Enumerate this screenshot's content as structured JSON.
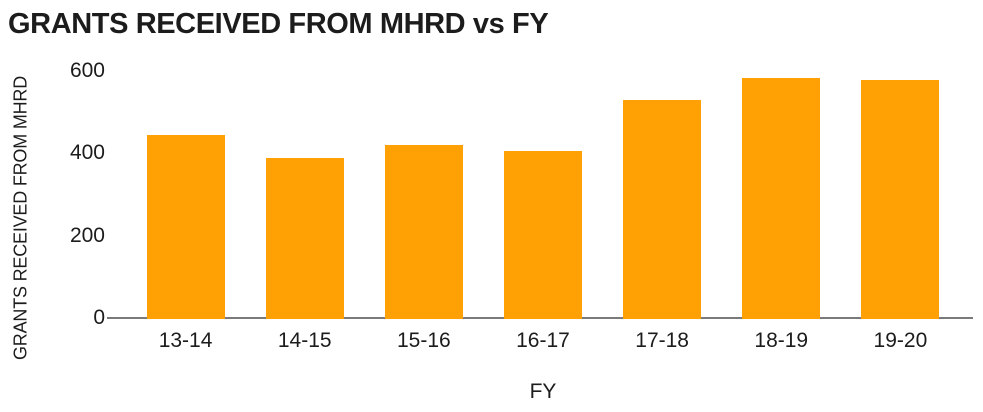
{
  "chart_data": {
    "type": "bar",
    "title": "GRANTS RECEIVED FROM MHRD vs FY",
    "xlabel": "FY",
    "ylabel": "GRANTS RECEIVED FROM MHRD",
    "categories": [
      "13-14",
      "14-15",
      "15-16",
      "16-17",
      "17-18",
      "18-19",
      "19-20"
    ],
    "values": [
      446,
      391,
      423,
      408,
      531,
      585,
      580
    ],
    "yticks": [
      0,
      200,
      400,
      600
    ],
    "ylim": [
      0,
      600
    ],
    "grid": false,
    "legend": "none",
    "bar_color": "#FFA005",
    "axis_line_color": "#7a7a7a",
    "text_color": "#1c1c1c"
  }
}
